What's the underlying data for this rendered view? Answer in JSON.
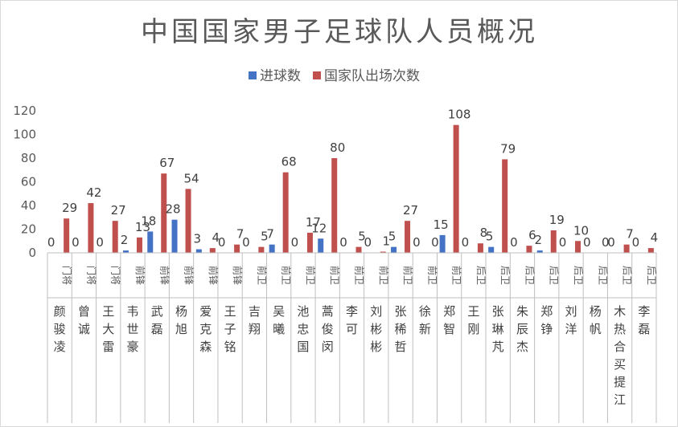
{
  "chart_data": {
    "type": "bar",
    "title": "中国国家男子足球队人员概况",
    "xlabel": "",
    "ylabel": "",
    "ylim": [
      0,
      120
    ],
    "yticks": [
      0,
      20,
      40,
      60,
      80,
      100,
      120
    ],
    "grid": false,
    "legend_position": "top",
    "categories": [
      {
        "position": "门将",
        "name": "颜骏凌"
      },
      {
        "position": "门将",
        "name": "曾诚"
      },
      {
        "position": "门将",
        "name": "王大雷"
      },
      {
        "position": "前锋",
        "name": "韦世豪"
      },
      {
        "position": "前锋",
        "name": "武磊"
      },
      {
        "position": "前锋",
        "name": "杨旭"
      },
      {
        "position": "前锋",
        "name": "爱克森"
      },
      {
        "position": "前锋",
        "name": "王子铭"
      },
      {
        "position": "前卫",
        "name": "吉翔"
      },
      {
        "position": "前卫",
        "name": "吴曦"
      },
      {
        "position": "前卫",
        "name": "池忠国"
      },
      {
        "position": "前卫",
        "name": "蒿俊闵"
      },
      {
        "position": "前卫",
        "name": "李可"
      },
      {
        "position": "前卫",
        "name": "刘彬彬"
      },
      {
        "position": "前卫",
        "name": "张稀哲"
      },
      {
        "position": "前卫",
        "name": "徐新"
      },
      {
        "position": "前卫",
        "name": "郑智"
      },
      {
        "position": "后卫",
        "name": "王刚"
      },
      {
        "position": "后卫",
        "name": "张琳芃"
      },
      {
        "position": "后卫",
        "name": "朱辰杰"
      },
      {
        "position": "后卫",
        "name": "郑铮"
      },
      {
        "position": "后卫",
        "name": "刘洋"
      },
      {
        "position": "后卫",
        "name": "杨帆"
      },
      {
        "position": "后卫",
        "name": "木热合买提江"
      },
      {
        "position": "后卫",
        "name": "李磊"
      }
    ],
    "series": [
      {
        "name": "进球数",
        "color": "#4472c4",
        "values": [
          0,
          0,
          0,
          2,
          18,
          28,
          3,
          0,
          0,
          7,
          0,
          12,
          0,
          0,
          5,
          0,
          15,
          0,
          5,
          0,
          2,
          0,
          0,
          0,
          0
        ]
      },
      {
        "name": "国家队出场次数",
        "color": "#c0504d",
        "values": [
          29,
          42,
          27,
          13,
          67,
          54,
          4,
          7,
          5,
          68,
          17,
          80,
          5,
          1,
          27,
          0,
          108,
          8,
          79,
          6,
          19,
          10,
          0,
          7,
          4
        ]
      }
    ]
  }
}
